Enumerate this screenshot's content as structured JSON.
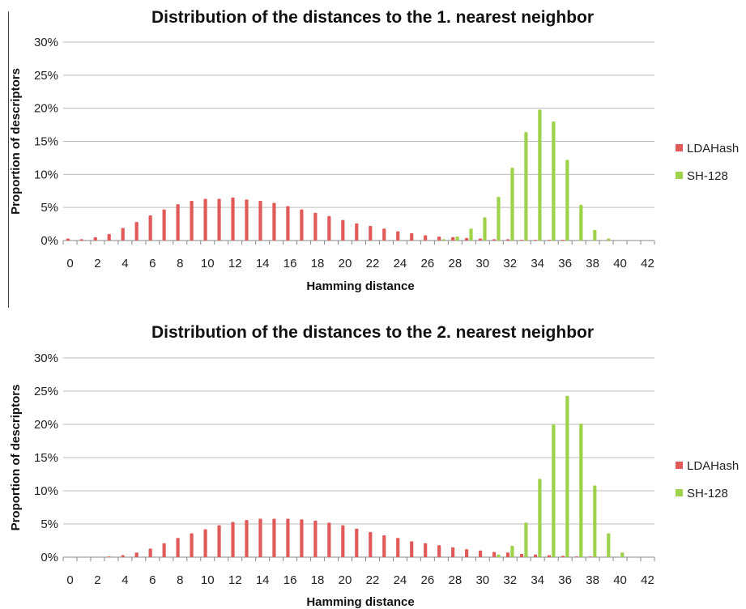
{
  "chart_data": [
    {
      "type": "bar",
      "title": "Distribution of the distances to the 1. nearest neighbor",
      "xlabel": "Hamming distance",
      "ylabel": "Proportion of descriptors",
      "x_tick_labels": [
        "0",
        "2",
        "4",
        "6",
        "8",
        "10",
        "12",
        "14",
        "16",
        "18",
        "20",
        "22",
        "24",
        "26",
        "28",
        "30",
        "32",
        "34",
        "36",
        "38",
        "40",
        "42"
      ],
      "y_tick_labels": [
        "0%",
        "5%",
        "10%",
        "15%",
        "20%",
        "25%",
        "30%"
      ],
      "ylim": [
        0,
        30
      ],
      "grid": true,
      "legend": "right",
      "categories": [
        0,
        1,
        2,
        3,
        4,
        5,
        6,
        7,
        8,
        9,
        10,
        11,
        12,
        13,
        14,
        15,
        16,
        17,
        18,
        19,
        20,
        21,
        22,
        23,
        24,
        25,
        26,
        27,
        28,
        29,
        30,
        31,
        32,
        33,
        34,
        35,
        36,
        37,
        38,
        39,
        40,
        41,
        42
      ],
      "series": [
        {
          "name": "LDAHash",
          "color": "#e05a5a",
          "values": [
            0.3,
            0.2,
            0.5,
            1.0,
            1.9,
            2.8,
            3.8,
            4.7,
            5.5,
            6.0,
            6.3,
            6.3,
            6.5,
            6.2,
            6.0,
            5.7,
            5.2,
            4.7,
            4.2,
            3.7,
            3.1,
            2.6,
            2.2,
            1.8,
            1.4,
            1.1,
            0.8,
            0.6,
            0.5,
            0.4,
            0.3,
            0.2,
            0.2,
            0.1,
            0.1,
            0.1,
            0.1,
            0,
            0,
            0,
            0,
            0,
            0
          ]
        },
        {
          "name": "SH-128",
          "color": "#9ed24a",
          "values": [
            0,
            0,
            0,
            0,
            0,
            0,
            0,
            0,
            0,
            0,
            0,
            0,
            0,
            0,
            0,
            0,
            0,
            0,
            0,
            0,
            0,
            0,
            0,
            0,
            0,
            0,
            0,
            0.2,
            0.6,
            1.8,
            3.5,
            6.6,
            11.0,
            16.4,
            19.8,
            18.0,
            12.2,
            5.4,
            1.6,
            0.3,
            0,
            0,
            0
          ]
        }
      ]
    },
    {
      "type": "bar",
      "title": "Distribution of the distances to the 2. nearest neighbor",
      "xlabel": "Hamming distance",
      "ylabel": "Proportion of descriptors",
      "x_tick_labels": [
        "0",
        "2",
        "4",
        "6",
        "8",
        "10",
        "12",
        "14",
        "16",
        "18",
        "20",
        "22",
        "24",
        "26",
        "28",
        "30",
        "32",
        "34",
        "36",
        "38",
        "40",
        "42"
      ],
      "y_tick_labels": [
        "0%",
        "5%",
        "10%",
        "15%",
        "20%",
        "25%",
        "30%"
      ],
      "ylim": [
        0,
        30
      ],
      "grid": true,
      "legend": "right",
      "categories": [
        0,
        1,
        2,
        3,
        4,
        5,
        6,
        7,
        8,
        9,
        10,
        11,
        12,
        13,
        14,
        15,
        16,
        17,
        18,
        19,
        20,
        21,
        22,
        23,
        24,
        25,
        26,
        27,
        28,
        29,
        30,
        31,
        32,
        33,
        34,
        35,
        36,
        37,
        38,
        39,
        40,
        41,
        42
      ],
      "series": [
        {
          "name": "LDAHash",
          "color": "#e05a5a",
          "values": [
            0,
            0,
            0,
            0.1,
            0.3,
            0.7,
            1.3,
            2.1,
            2.9,
            3.6,
            4.2,
            4.8,
            5.3,
            5.6,
            5.8,
            5.8,
            5.8,
            5.7,
            5.5,
            5.2,
            4.8,
            4.3,
            3.8,
            3.3,
            2.9,
            2.4,
            2.1,
            1.8,
            1.5,
            1.2,
            1.0,
            0.8,
            0.7,
            0.5,
            0.4,
            0.3,
            0.2,
            0.1,
            0.1,
            0,
            0,
            0,
            0
          ]
        },
        {
          "name": "SH-128",
          "color": "#9ed24a",
          "values": [
            0,
            0,
            0,
            0,
            0,
            0,
            0,
            0,
            0,
            0,
            0,
            0,
            0,
            0,
            0,
            0,
            0,
            0,
            0,
            0,
            0,
            0,
            0,
            0,
            0,
            0,
            0,
            0,
            0,
            0,
            0,
            0.4,
            1.7,
            5.2,
            11.8,
            20.0,
            24.3,
            20.1,
            10.8,
            3.6,
            0.7,
            0,
            0
          ]
        }
      ]
    }
  ]
}
